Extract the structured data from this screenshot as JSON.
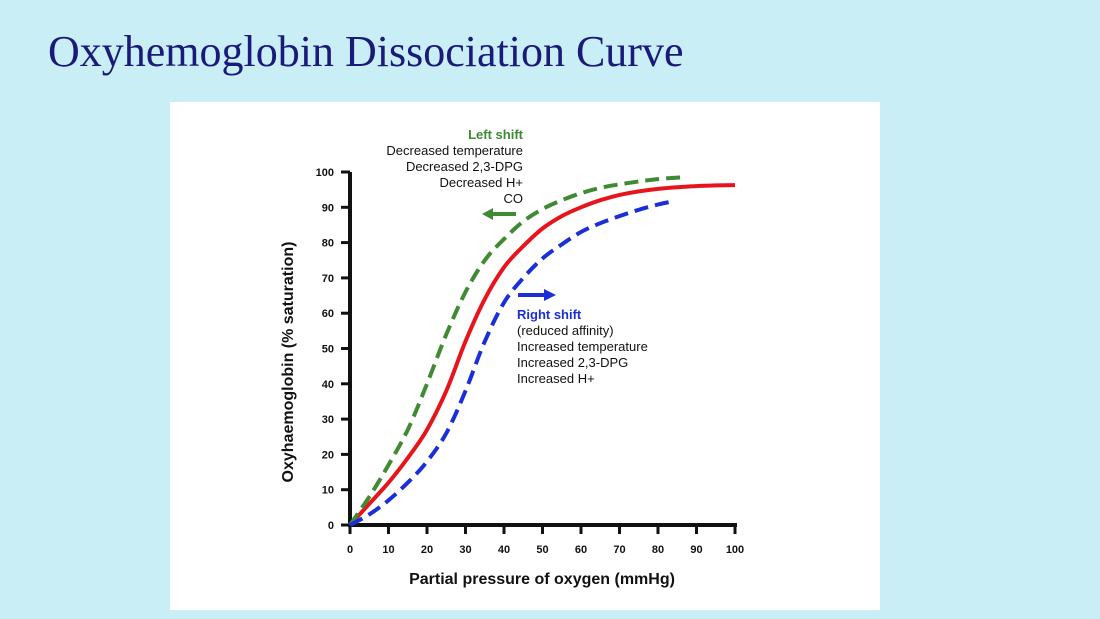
{
  "slide": {
    "title": "Oxyhemoglobin Dissociation Curve"
  },
  "colors": {
    "background": "#c9eef6",
    "title": "#1a1a78",
    "normal_curve": "#e8141c",
    "left_shift": "#3f8a33",
    "right_shift": "#1a2fd8"
  },
  "chart_data": {
    "type": "line",
    "title": "",
    "xlabel": "Partial pressure of oxygen (mmHg)",
    "ylabel": "Oxyhaemoglobin (% saturation)",
    "xlim": [
      0,
      100
    ],
    "ylim": [
      0,
      100
    ],
    "xticks": [
      0,
      10,
      20,
      30,
      40,
      50,
      60,
      70,
      80,
      90,
      100
    ],
    "yticks": [
      0,
      10,
      20,
      30,
      40,
      50,
      60,
      70,
      80,
      90,
      100
    ],
    "grid": false,
    "series": [
      {
        "key": "normal",
        "style": "solid",
        "color": "#e8141c",
        "x": [
          0,
          5,
          10,
          15,
          20,
          25,
          30,
          35,
          40,
          45,
          50,
          55,
          60,
          65,
          70,
          75,
          80,
          85,
          90,
          95,
          100
        ],
        "y": [
          0,
          6,
          12,
          19,
          27,
          38,
          52,
          64,
          73,
          79,
          84,
          87.5,
          90,
          92,
          93.5,
          94.5,
          95.2,
          95.7,
          96,
          96.2,
          96.3
        ]
      },
      {
        "key": "left",
        "style": "dashed",
        "color": "#3f8a33",
        "x": [
          0,
          5,
          10,
          15,
          20,
          25,
          30,
          35,
          40,
          45,
          50,
          55,
          60,
          65,
          70,
          75,
          80,
          85,
          87
        ],
        "y": [
          0,
          8,
          17,
          27,
          40,
          54,
          66,
          75,
          81,
          86,
          89.5,
          92,
          94,
          95.5,
          96.5,
          97.3,
          98,
          98.4,
          98.5
        ]
      },
      {
        "key": "right",
        "style": "dashed",
        "color": "#1a2fd8",
        "x": [
          0,
          5,
          10,
          15,
          20,
          25,
          30,
          35,
          40,
          45,
          50,
          55,
          60,
          65,
          70,
          75,
          80,
          83
        ],
        "y": [
          0,
          3,
          7,
          12,
          18,
          26,
          38,
          52,
          63,
          70,
          75.5,
          79.5,
          83,
          85.5,
          87.5,
          89.3,
          90.8,
          91.5
        ]
      }
    ],
    "annotations": {
      "left_shift": {
        "title": "Left shift",
        "lines": [
          "Decreased temperature",
          "Decreased 2,3-DPG",
          "Decreased H+",
          "CO"
        ],
        "arrow": "left"
      },
      "right_shift": {
        "title": "Right shift",
        "lines": [
          "(reduced affinity)",
          "Increased temperature",
          "Increased 2,3-DPG",
          "Increased H+"
        ],
        "arrow": "right"
      }
    }
  }
}
